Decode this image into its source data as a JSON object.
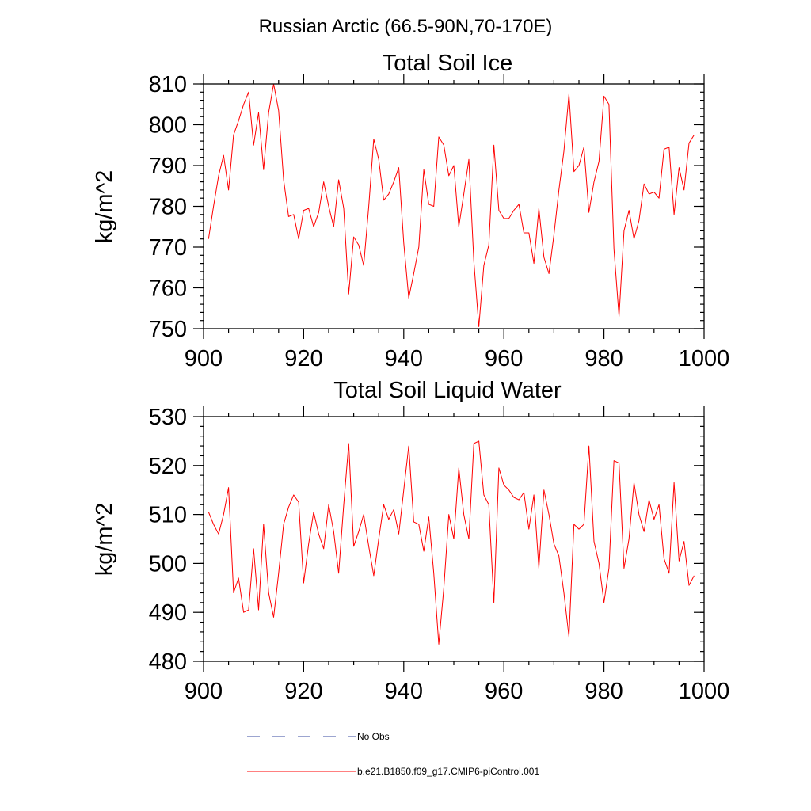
{
  "page_title": "Russian Arctic (66.5-90N,70-170E)",
  "colors": {
    "model": "#ff0000",
    "obs": "#3a4ba0"
  },
  "legend": [
    {
      "label": "No Obs",
      "style": "dashed",
      "color": "#3a4ba0"
    },
    {
      "label": "b.e21.B1850.f09_g17.CMIP6-piControl.001",
      "style": "solid",
      "color": "#ff0000"
    }
  ],
  "chart_data": [
    {
      "type": "line",
      "title": "Total Soil Ice",
      "xlabel": "",
      "ylabel": "kg/m^2",
      "xlim": [
        900,
        1000
      ],
      "ylim": [
        750,
        810
      ],
      "xticks": [
        900,
        920,
        940,
        960,
        980,
        1000
      ],
      "yticks": [
        750,
        760,
        770,
        780,
        790,
        800,
        810
      ],
      "series": [
        {
          "name": "b.e21.B1850.f09_g17.CMIP6-piControl.001",
          "x": [
            901,
            902,
            903,
            904,
            905,
            906,
            907,
            908,
            909,
            910,
            911,
            912,
            913,
            914,
            915,
            916,
            917,
            918,
            919,
            920,
            921,
            922,
            923,
            924,
            925,
            926,
            927,
            928,
            929,
            930,
            931,
            932,
            933,
            934,
            935,
            936,
            937,
            938,
            939,
            940,
            941,
            942,
            943,
            944,
            945,
            946,
            947,
            948,
            949,
            950,
            951,
            952,
            953,
            954,
            955,
            956,
            957,
            958,
            959,
            960,
            961,
            962,
            963,
            964,
            965,
            966,
            967,
            968,
            969,
            970,
            971,
            972,
            973,
            974,
            975,
            976,
            977,
            978,
            979,
            980,
            981,
            982,
            983,
            984,
            985,
            986,
            987,
            988,
            989,
            990,
            991,
            992,
            993,
            994,
            995,
            996,
            997,
            998
          ],
          "values": [
            772,
            780,
            787.5,
            792.5,
            784,
            797.5,
            801,
            805,
            808,
            795,
            803,
            789,
            803,
            810,
            803.5,
            786.5,
            777.5,
            778,
            772,
            779,
            779.5,
            775,
            778.5,
            786,
            780,
            775,
            786.5,
            779.5,
            758.5,
            772.5,
            770.5,
            765.5,
            780,
            796.5,
            791.5,
            781.5,
            783,
            786,
            789.5,
            771,
            757.5,
            763.5,
            770,
            789,
            780.5,
            780,
            797,
            795,
            787.5,
            790,
            775,
            783,
            791.5,
            766.5,
            750.5,
            765.5,
            770.5,
            795,
            779,
            777,
            777,
            779,
            780.5,
            773.5,
            773.5,
            766,
            779.5,
            767.5,
            763.5,
            773,
            784,
            793.5,
            807.5,
            788.5,
            790,
            794.5,
            778.5,
            786,
            791,
            807,
            805,
            769.5,
            753,
            774,
            779,
            772,
            776.5,
            785.5,
            783,
            783.5,
            782,
            794,
            794.5,
            778,
            789.5,
            784,
            795.5,
            797.5
          ]
        }
      ]
    },
    {
      "type": "line",
      "title": "Total Soil Liquid Water",
      "xlabel": "",
      "ylabel": "kg/m^2",
      "xlim": [
        900,
        1000
      ],
      "ylim": [
        480,
        530
      ],
      "xticks": [
        900,
        920,
        940,
        960,
        980,
        1000
      ],
      "yticks": [
        480,
        490,
        500,
        510,
        520,
        530
      ],
      "series": [
        {
          "name": "b.e21.B1850.f09_g17.CMIP6-piControl.001",
          "x": [
            901,
            902,
            903,
            904,
            905,
            906,
            907,
            908,
            909,
            910,
            911,
            912,
            913,
            914,
            915,
            916,
            917,
            918,
            919,
            920,
            921,
            922,
            923,
            924,
            925,
            926,
            927,
            928,
            929,
            930,
            931,
            932,
            933,
            934,
            935,
            936,
            937,
            938,
            939,
            940,
            941,
            942,
            943,
            944,
            945,
            946,
            947,
            948,
            949,
            950,
            951,
            952,
            953,
            954,
            955,
            956,
            957,
            958,
            959,
            960,
            961,
            962,
            963,
            964,
            965,
            966,
            967,
            968,
            969,
            970,
            971,
            972,
            973,
            974,
            975,
            976,
            977,
            978,
            979,
            980,
            981,
            982,
            983,
            984,
            985,
            986,
            987,
            988,
            989,
            990,
            991,
            992,
            993,
            994,
            995,
            996,
            997,
            998
          ],
          "values": [
            510.5,
            508,
            506,
            510,
            515.5,
            494,
            497,
            490,
            490.5,
            503,
            490.5,
            508,
            494,
            489,
            498,
            508,
            511.5,
            514,
            512.5,
            496,
            504,
            510.5,
            506,
            503,
            512,
            506.5,
            498,
            512,
            524.5,
            503.5,
            506.5,
            510,
            503.5,
            497.5,
            505,
            512,
            509,
            511,
            506,
            515,
            524,
            508.5,
            508,
            502.5,
            509.5,
            498,
            483.5,
            495,
            510,
            505,
            519.5,
            510,
            505,
            524.5,
            525,
            514,
            512,
            492,
            519.5,
            516,
            515,
            513.5,
            513,
            514.5,
            507,
            514,
            499,
            515,
            510,
            504,
            501.5,
            494,
            485,
            508,
            507,
            508,
            524,
            504.5,
            500,
            492,
            499,
            521,
            520.5,
            499,
            505,
            516.5,
            510,
            506.5,
            513,
            509,
            512,
            501,
            498,
            516.5,
            500.5,
            504.5,
            495.5,
            497.5
          ]
        }
      ]
    }
  ]
}
